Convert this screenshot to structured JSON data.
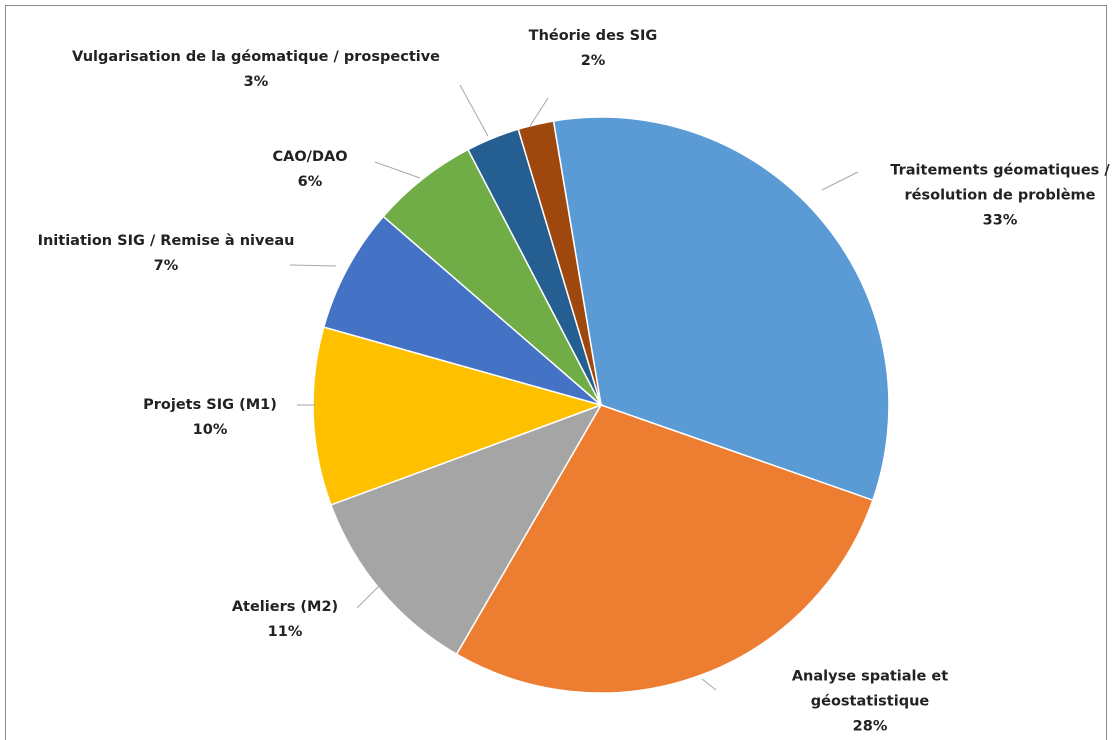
{
  "chart_data": {
    "type": "pie",
    "categories": [
      "Traitements géomatiques / résolution de problème",
      "Analyse spatiale et géostatistique",
      "Ateliers (M2)",
      "Projets SIG (M1)",
      "Initiation SIG / Remise à niveau",
      "CAO/DAO",
      "Vulgarisation de la géomatique / prospective",
      "Théorie des SIG"
    ],
    "values": [
      33,
      28,
      11,
      10,
      7,
      6,
      3,
      2
    ],
    "value_labels": [
      "33%",
      "28%",
      "11%",
      "10%",
      "7%",
      "6%",
      "3%",
      "2%"
    ],
    "colors": [
      "#5b9bd5",
      "#ed7d31",
      "#a5a5a5",
      "#ffc000",
      "#4472c4",
      "#70ad47",
      "#255e91",
      "#9e480e"
    ]
  }
}
